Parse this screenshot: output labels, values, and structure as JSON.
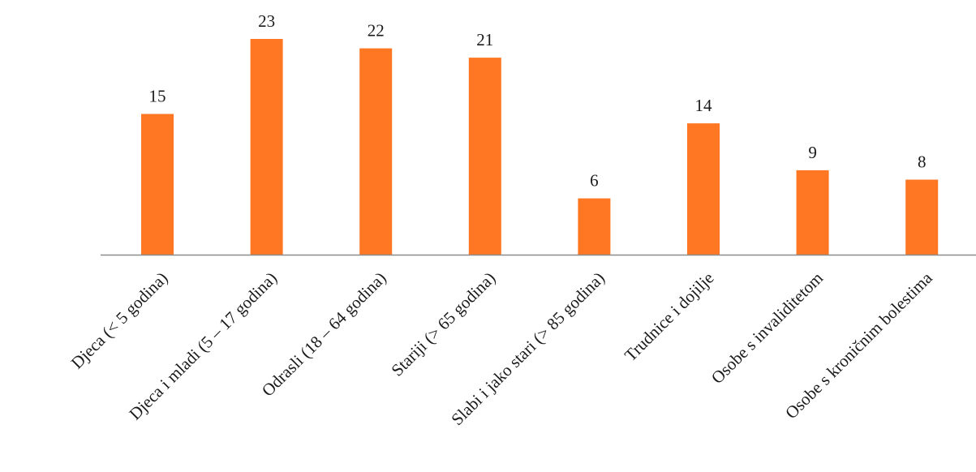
{
  "chart_data": {
    "type": "bar",
    "title": "",
    "xlabel": "",
    "ylabel": "",
    "categories": [
      "Djeca (< 5 godina)",
      "Djeca i mladi (5 – 17 godina)",
      "Odrasli (18 – 64 godina)",
      "Stariji (> 65 godina)",
      "Slabi i jako stari (> 85 godina)",
      "Trudnice i dojilje",
      "Osobe s invaliditetom",
      "Osobe s kroničnim bolestima"
    ],
    "values": [
      15,
      23,
      22,
      21,
      6,
      14,
      9,
      8
    ],
    "ylim": [
      0,
      23
    ],
    "grid": false,
    "legend": "none",
    "colors": {
      "bar": "#FF7722",
      "axis": "#8c8c8c",
      "text": "#1a1a1a"
    }
  }
}
